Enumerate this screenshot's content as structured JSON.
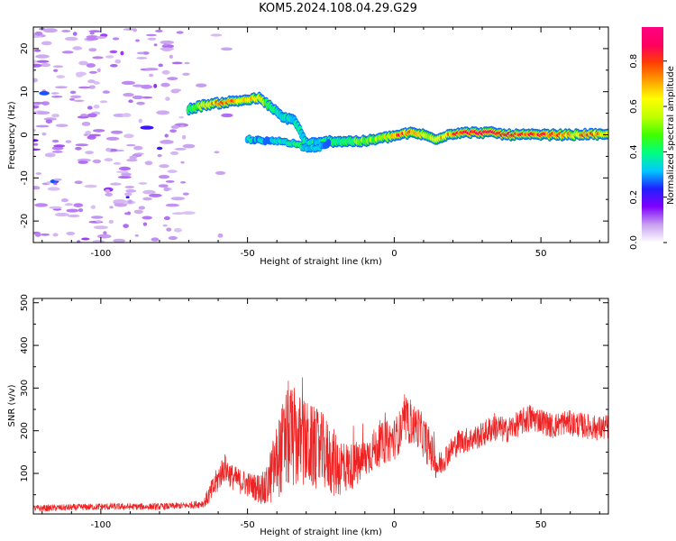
{
  "title": "KOM5.2024.108.04.29.G29",
  "chart_data": [
    {
      "type": "heatmap",
      "xlabel": "Height of straight line (km)",
      "ylabel": "Frequency (Hz)",
      "xlim": [
        -123,
        73
      ],
      "ylim": [
        -25,
        25
      ],
      "xticks": [
        -100,
        -50,
        0,
        50
      ],
      "xtick_labels": [
        "-100",
        "-50",
        "0",
        "50"
      ],
      "yticks": [
        -20,
        -10,
        0,
        10,
        20
      ],
      "ytick_labels": [
        "-20",
        "-10",
        "0",
        "10",
        "20"
      ],
      "colorbar": {
        "label": "Normalized spectral amplitude",
        "range": [
          0,
          0.95
        ],
        "ticks": [
          0.0,
          0.2,
          0.4,
          0.6,
          0.8
        ],
        "tick_labels": [
          "0.0",
          "0.2",
          "0.4",
          "0.6",
          "0.8"
        ],
        "colors": [
          "#ffffff",
          "#c8a0f0",
          "#8000ff",
          "#2020ff",
          "#00c8ff",
          "#00ff80",
          "#40ff00",
          "#c0ff00",
          "#ffff00",
          "#ffa000",
          "#ff4000",
          "#ff0060",
          "#ff0080"
        ]
      },
      "ridge": {
        "x": [
          -70,
          -64,
          -58,
          -52,
          -46,
          -42,
          -38,
          -34,
          -30,
          -26,
          -22,
          -18,
          -14,
          -10,
          -6,
          -2,
          2,
          6,
          10,
          14,
          18,
          22,
          26,
          30,
          34,
          38,
          42,
          46,
          50,
          54,
          58,
          62,
          66,
          70,
          73
        ],
        "y": [
          6,
          7,
          7.5,
          8,
          8.5,
          6.5,
          4,
          3.5,
          -2,
          -2,
          -1.5,
          -1.5,
          -1.5,
          -1.5,
          -1,
          -0.5,
          0,
          0.5,
          0,
          -1,
          0,
          0.5,
          0.5,
          0.5,
          0.5,
          0,
          0,
          0,
          0,
          0,
          0,
          0,
          0.2,
          0,
          0
        ],
        "amplitude": [
          0.4,
          0.6,
          0.8,
          0.7,
          0.6,
          0.4,
          0.35,
          0.35,
          0.35,
          0.35,
          0.4,
          0.4,
          0.45,
          0.5,
          0.55,
          0.6,
          0.8,
          0.7,
          0.6,
          0.6,
          0.7,
          0.8,
          0.9,
          0.95,
          0.9,
          0.9,
          0.85,
          0.8,
          0.8,
          0.8,
          0.75,
          0.6,
          0.8,
          0.7,
          0.6
        ]
      },
      "secondary_ridge": {
        "x": [
          -50,
          -44,
          -38,
          -34,
          -30,
          -26,
          -22
        ],
        "y": [
          -1,
          -1.5,
          -1.5,
          -2,
          -3,
          -3,
          -2
        ],
        "amplitude": [
          0.35,
          0.3,
          0.35,
          0.4,
          0.35,
          0.3,
          0.3
        ]
      }
    },
    {
      "type": "line",
      "xlabel": "Height of straight line (km)",
      "ylabel": "SNR (v/v)",
      "xlim": [
        -123,
        73
      ],
      "ylim": [
        5,
        510
      ],
      "xticks": [
        -100,
        -50,
        0,
        50
      ],
      "xtick_labels": [
        "-100",
        "-50",
        "0",
        "50"
      ],
      "yticks": [
        100,
        200,
        300,
        400,
        500
      ],
      "ytick_labels": [
        "100",
        "200",
        "300",
        "400",
        "500"
      ],
      "series": [
        {
          "color": "#ee2222",
          "x": [
            -123,
            -110,
            -100,
            -90,
            -80,
            -70,
            -65,
            -62,
            -58,
            -55,
            -52,
            -48,
            -44,
            -40,
            -36,
            -32,
            -28,
            -24,
            -20,
            -16,
            -12,
            -8,
            -4,
            0,
            4,
            8,
            12,
            15,
            18,
            22,
            26,
            30,
            34,
            38,
            42,
            46,
            50,
            54,
            58,
            62,
            66,
            70,
            73
          ],
          "y": [
            18,
            20,
            22,
            22,
            22,
            25,
            30,
            60,
            115,
            90,
            80,
            70,
            60,
            130,
            190,
            175,
            160,
            150,
            120,
            115,
            120,
            150,
            170,
            180,
            220,
            210,
            160,
            115,
            145,
            175,
            180,
            190,
            210,
            200,
            215,
            230,
            225,
            210,
            220,
            215,
            210,
            205,
            210
          ],
          "noise": [
            8,
            8,
            8,
            8,
            8,
            8,
            10,
            30,
            35,
            30,
            30,
            30,
            45,
            90,
            130,
            110,
            100,
            90,
            80,
            60,
            50,
            50,
            50,
            50,
            50,
            50,
            50,
            35,
            30,
            30,
            30,
            30,
            35,
            30,
            30,
            35,
            30,
            30,
            30,
            30,
            30,
            30,
            30
          ]
        }
      ]
    }
  ]
}
